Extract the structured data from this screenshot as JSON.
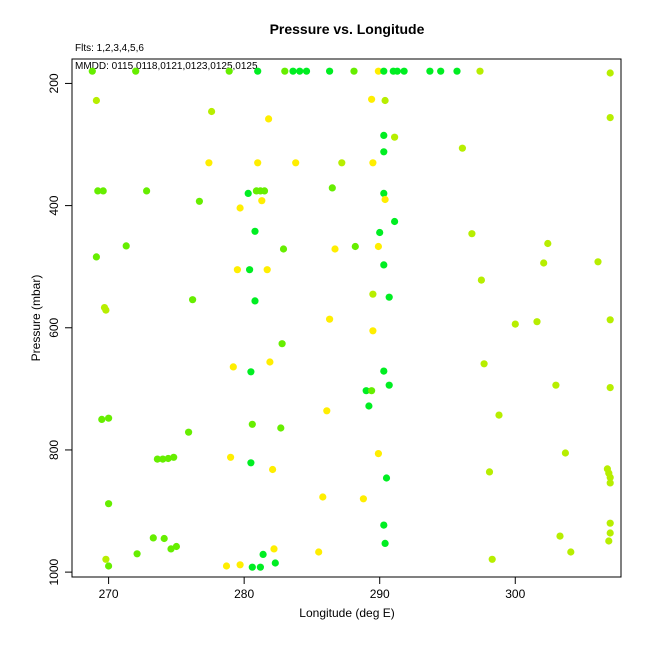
{
  "chart_data": {
    "type": "scatter",
    "title": "Pressure vs. Longitude",
    "notes": [
      "Flts: 1,2,3,4,5,6",
      "MMDD: 0115,0118,0121,0123,0125,0125"
    ],
    "xlabel": "Longitude (deg E)",
    "ylabel": "Pressure (mbar)",
    "xlim": [
      267.3,
      307.8
    ],
    "ylim": [
      1008,
      160
    ],
    "y_reversed": true,
    "grid": false,
    "x_ticks": [
      270,
      280,
      290,
      300
    ],
    "y_ticks": [
      200,
      400,
      600,
      800,
      1000
    ],
    "x_tick_labels": [
      "270",
      "280",
      "290",
      "300"
    ],
    "y_tick_labels": [
      "200",
      "400",
      "600",
      "800",
      "1000"
    ],
    "colors": {
      "yellow": "#ffee00",
      "yellow_green": "#b7ee00",
      "lime": "#66ee00",
      "green": "#00ee22",
      "frame": "#000000"
    },
    "points": [
      {
        "x": 268.8,
        "y": 180,
        "c": "lime"
      },
      {
        "x": 272.0,
        "y": 180,
        "c": "lime"
      },
      {
        "x": 278.9,
        "y": 180,
        "c": "lime"
      },
      {
        "x": 281.0,
        "y": 180,
        "c": "green"
      },
      {
        "x": 283.0,
        "y": 180,
        "c": "lime"
      },
      {
        "x": 283.6,
        "y": 180,
        "c": "green"
      },
      {
        "x": 284.1,
        "y": 180,
        "c": "green"
      },
      {
        "x": 284.6,
        "y": 180,
        "c": "green"
      },
      {
        "x": 286.3,
        "y": 180,
        "c": "green"
      },
      {
        "x": 288.1,
        "y": 180,
        "c": "lime"
      },
      {
        "x": 289.9,
        "y": 180,
        "c": "yellow"
      },
      {
        "x": 290.3,
        "y": 180,
        "c": "green"
      },
      {
        "x": 291.0,
        "y": 180,
        "c": "green"
      },
      {
        "x": 291.3,
        "y": 180,
        "c": "green"
      },
      {
        "x": 291.8,
        "y": 180,
        "c": "green"
      },
      {
        "x": 293.7,
        "y": 180,
        "c": "green"
      },
      {
        "x": 294.5,
        "y": 180,
        "c": "green"
      },
      {
        "x": 295.7,
        "y": 180,
        "c": "green"
      },
      {
        "x": 297.4,
        "y": 180,
        "c": "yellow_green"
      },
      {
        "x": 307.0,
        "y": 183,
        "c": "yellow_green"
      },
      {
        "x": 269.1,
        "y": 228,
        "c": "yellow_green"
      },
      {
        "x": 289.4,
        "y": 226,
        "c": "yellow"
      },
      {
        "x": 290.4,
        "y": 228,
        "c": "yellow_green"
      },
      {
        "x": 277.6,
        "y": 246,
        "c": "yellow_green"
      },
      {
        "x": 281.8,
        "y": 258,
        "c": "yellow"
      },
      {
        "x": 307.0,
        "y": 256,
        "c": "yellow_green"
      },
      {
        "x": 290.3,
        "y": 285,
        "c": "green"
      },
      {
        "x": 291.1,
        "y": 288,
        "c": "yellow_green"
      },
      {
        "x": 296.1,
        "y": 306,
        "c": "yellow_green"
      },
      {
        "x": 290.3,
        "y": 312,
        "c": "green"
      },
      {
        "x": 277.4,
        "y": 330,
        "c": "yellow"
      },
      {
        "x": 281.0,
        "y": 330,
        "c": "yellow"
      },
      {
        "x": 283.8,
        "y": 330,
        "c": "yellow"
      },
      {
        "x": 287.2,
        "y": 330,
        "c": "yellow_green"
      },
      {
        "x": 289.5,
        "y": 330,
        "c": "yellow"
      },
      {
        "x": 286.5,
        "y": 371,
        "c": "lime"
      },
      {
        "x": 269.2,
        "y": 376,
        "c": "lime"
      },
      {
        "x": 269.6,
        "y": 376,
        "c": "lime"
      },
      {
        "x": 272.8,
        "y": 376,
        "c": "lime"
      },
      {
        "x": 280.3,
        "y": 380,
        "c": "green"
      },
      {
        "x": 280.9,
        "y": 376,
        "c": "lime"
      },
      {
        "x": 281.2,
        "y": 376,
        "c": "lime"
      },
      {
        "x": 281.5,
        "y": 376,
        "c": "lime"
      },
      {
        "x": 290.3,
        "y": 380,
        "c": "green"
      },
      {
        "x": 290.4,
        "y": 390,
        "c": "yellow"
      },
      {
        "x": 276.7,
        "y": 393,
        "c": "lime"
      },
      {
        "x": 281.3,
        "y": 392,
        "c": "yellow"
      },
      {
        "x": 279.7,
        "y": 404,
        "c": "yellow"
      },
      {
        "x": 291.1,
        "y": 426,
        "c": "green"
      },
      {
        "x": 280.8,
        "y": 442,
        "c": "green"
      },
      {
        "x": 290.0,
        "y": 444,
        "c": "green"
      },
      {
        "x": 296.8,
        "y": 446,
        "c": "yellow_green"
      },
      {
        "x": 302.4,
        "y": 462,
        "c": "yellow_green"
      },
      {
        "x": 271.3,
        "y": 466,
        "c": "lime"
      },
      {
        "x": 282.9,
        "y": 471,
        "c": "lime"
      },
      {
        "x": 286.7,
        "y": 471,
        "c": "yellow"
      },
      {
        "x": 288.2,
        "y": 467,
        "c": "lime"
      },
      {
        "x": 289.9,
        "y": 467,
        "c": "yellow"
      },
      {
        "x": 269.1,
        "y": 484,
        "c": "lime"
      },
      {
        "x": 302.1,
        "y": 494,
        "c": "yellow_green"
      },
      {
        "x": 306.1,
        "y": 492,
        "c": "yellow_green"
      },
      {
        "x": 290.3,
        "y": 497,
        "c": "green"
      },
      {
        "x": 279.5,
        "y": 505,
        "c": "yellow"
      },
      {
        "x": 280.4,
        "y": 505,
        "c": "green"
      },
      {
        "x": 281.7,
        "y": 505,
        "c": "yellow"
      },
      {
        "x": 297.5,
        "y": 522,
        "c": "yellow_green"
      },
      {
        "x": 289.5,
        "y": 545,
        "c": "yellow_green"
      },
      {
        "x": 290.7,
        "y": 550,
        "c": "green"
      },
      {
        "x": 276.2,
        "y": 554,
        "c": "lime"
      },
      {
        "x": 280.8,
        "y": 556,
        "c": "green"
      },
      {
        "x": 269.7,
        "y": 567,
        "c": "yellow_green"
      },
      {
        "x": 269.8,
        "y": 571,
        "c": "yellow_green"
      },
      {
        "x": 286.3,
        "y": 586,
        "c": "yellow"
      },
      {
        "x": 300.0,
        "y": 594,
        "c": "yellow_green"
      },
      {
        "x": 301.6,
        "y": 590,
        "c": "yellow_green"
      },
      {
        "x": 307.0,
        "y": 587,
        "c": "yellow_green"
      },
      {
        "x": 289.5,
        "y": 605,
        "c": "yellow"
      },
      {
        "x": 282.8,
        "y": 626,
        "c": "lime"
      },
      {
        "x": 281.9,
        "y": 656,
        "c": "yellow"
      },
      {
        "x": 279.2,
        "y": 664,
        "c": "yellow"
      },
      {
        "x": 297.7,
        "y": 659,
        "c": "yellow_green"
      },
      {
        "x": 280.5,
        "y": 672,
        "c": "green"
      },
      {
        "x": 290.3,
        "y": 671,
        "c": "green"
      },
      {
        "x": 303.0,
        "y": 694,
        "c": "yellow_green"
      },
      {
        "x": 290.7,
        "y": 694,
        "c": "green"
      },
      {
        "x": 307.0,
        "y": 698,
        "c": "yellow_green"
      },
      {
        "x": 289.0,
        "y": 703,
        "c": "green"
      },
      {
        "x": 289.4,
        "y": 703,
        "c": "lime"
      },
      {
        "x": 289.2,
        "y": 728,
        "c": "green"
      },
      {
        "x": 286.1,
        "y": 736,
        "c": "yellow"
      },
      {
        "x": 298.8,
        "y": 743,
        "c": "yellow_green"
      },
      {
        "x": 269.5,
        "y": 750,
        "c": "lime"
      },
      {
        "x": 270.0,
        "y": 748,
        "c": "lime"
      },
      {
        "x": 280.6,
        "y": 758,
        "c": "lime"
      },
      {
        "x": 282.7,
        "y": 764,
        "c": "lime"
      },
      {
        "x": 275.9,
        "y": 771,
        "c": "lime"
      },
      {
        "x": 303.7,
        "y": 805,
        "c": "yellow_green"
      },
      {
        "x": 273.6,
        "y": 815,
        "c": "lime"
      },
      {
        "x": 274.0,
        "y": 815,
        "c": "lime"
      },
      {
        "x": 274.4,
        "y": 814,
        "c": "lime"
      },
      {
        "x": 274.8,
        "y": 812,
        "c": "lime"
      },
      {
        "x": 279.0,
        "y": 812,
        "c": "yellow"
      },
      {
        "x": 289.9,
        "y": 806,
        "c": "yellow"
      },
      {
        "x": 280.5,
        "y": 821,
        "c": "green"
      },
      {
        "x": 282.1,
        "y": 832,
        "c": "yellow"
      },
      {
        "x": 306.8,
        "y": 831,
        "c": "yellow_green"
      },
      {
        "x": 306.9,
        "y": 838,
        "c": "yellow_green"
      },
      {
        "x": 298.1,
        "y": 836,
        "c": "yellow_green"
      },
      {
        "x": 307.0,
        "y": 845,
        "c": "yellow_green"
      },
      {
        "x": 290.5,
        "y": 846,
        "c": "green"
      },
      {
        "x": 307.0,
        "y": 854,
        "c": "yellow_green"
      },
      {
        "x": 285.8,
        "y": 877,
        "c": "yellow"
      },
      {
        "x": 288.8,
        "y": 880,
        "c": "yellow"
      },
      {
        "x": 270.0,
        "y": 888,
        "c": "lime"
      },
      {
        "x": 290.3,
        "y": 923,
        "c": "green"
      },
      {
        "x": 307.0,
        "y": 920,
        "c": "yellow_green"
      },
      {
        "x": 307.0,
        "y": 936,
        "c": "yellow_green"
      },
      {
        "x": 303.3,
        "y": 941,
        "c": "yellow_green"
      },
      {
        "x": 273.3,
        "y": 944,
        "c": "lime"
      },
      {
        "x": 274.1,
        "y": 945,
        "c": "lime"
      },
      {
        "x": 306.9,
        "y": 949,
        "c": "yellow_green"
      },
      {
        "x": 290.4,
        "y": 953,
        "c": "green"
      },
      {
        "x": 275.0,
        "y": 958,
        "c": "lime"
      },
      {
        "x": 274.6,
        "y": 962,
        "c": "lime"
      },
      {
        "x": 282.2,
        "y": 962,
        "c": "yellow"
      },
      {
        "x": 285.5,
        "y": 967,
        "c": "yellow"
      },
      {
        "x": 304.1,
        "y": 967,
        "c": "yellow_green"
      },
      {
        "x": 272.1,
        "y": 970,
        "c": "lime"
      },
      {
        "x": 281.4,
        "y": 971,
        "c": "green"
      },
      {
        "x": 269.8,
        "y": 979,
        "c": "yellow_green"
      },
      {
        "x": 298.3,
        "y": 979,
        "c": "yellow_green"
      },
      {
        "x": 282.3,
        "y": 985,
        "c": "green"
      },
      {
        "x": 270.0,
        "y": 990,
        "c": "lime"
      },
      {
        "x": 278.7,
        "y": 990,
        "c": "yellow"
      },
      {
        "x": 279.7,
        "y": 988,
        "c": "yellow"
      },
      {
        "x": 280.6,
        "y": 992,
        "c": "green"
      },
      {
        "x": 281.2,
        "y": 992,
        "c": "green"
      }
    ]
  }
}
